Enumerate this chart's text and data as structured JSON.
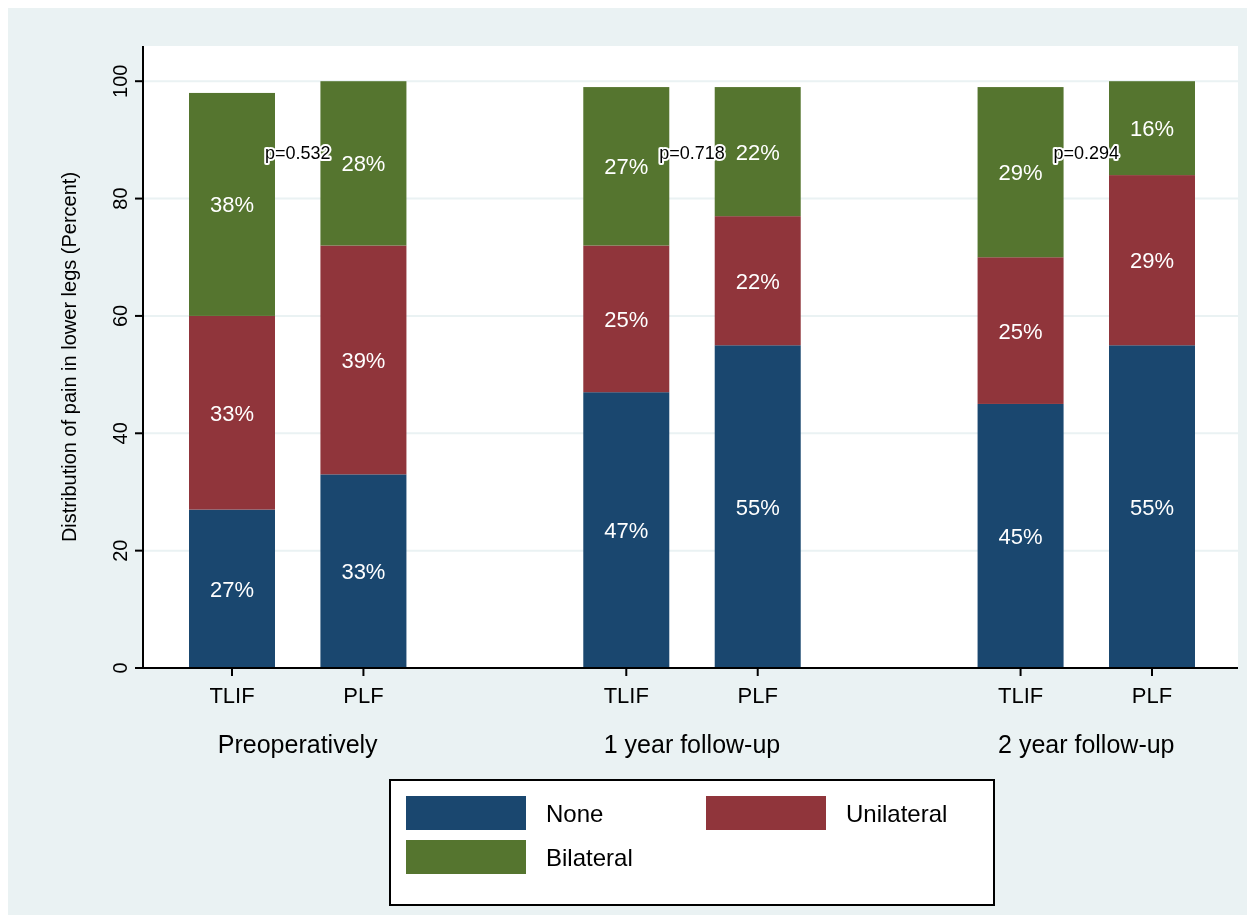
{
  "chart_data": {
    "type": "bar",
    "stacked": true,
    "ylabel": "Distribution of pain in lower legs (Percent)",
    "categories": [
      "TLIF",
      "PLF",
      null,
      "TLIF",
      "PLF",
      null,
      "TLIF",
      "PLF"
    ],
    "series": [
      {
        "name": "None",
        "color": "#1a476f",
        "values": [
          27,
          33,
          null,
          47,
          55,
          null,
          45,
          55
        ],
        "value_labels": [
          "27%",
          "33%",
          null,
          "47%",
          "55%",
          null,
          "45%",
          "55%"
        ]
      },
      {
        "name": "Unilateral",
        "color": "#90353b",
        "values": [
          33,
          39,
          null,
          25,
          22,
          null,
          25,
          29
        ],
        "value_labels": [
          "33%",
          "39%",
          null,
          "25%",
          "22%",
          null,
          "25%",
          "29%"
        ]
      },
      {
        "name": "Bilateral",
        "color": "#55752f",
        "values": [
          38,
          28,
          null,
          27,
          22,
          null,
          29,
          16
        ],
        "value_labels": [
          "38%",
          "28%",
          null,
          "27%",
          "22%",
          null,
          "29%",
          "16%"
        ]
      }
    ],
    "annotations": [
      "p=0.532",
      "p=0.718",
      "p=0.294",
      "Preoperatively",
      "1 year follow-up",
      "2 year follow-up"
    ],
    "ylim": [
      0,
      106
    ],
    "yticks": [
      0,
      20,
      40,
      60,
      80,
      100
    ],
    "grid": "y",
    "legend": "bottom"
  }
}
